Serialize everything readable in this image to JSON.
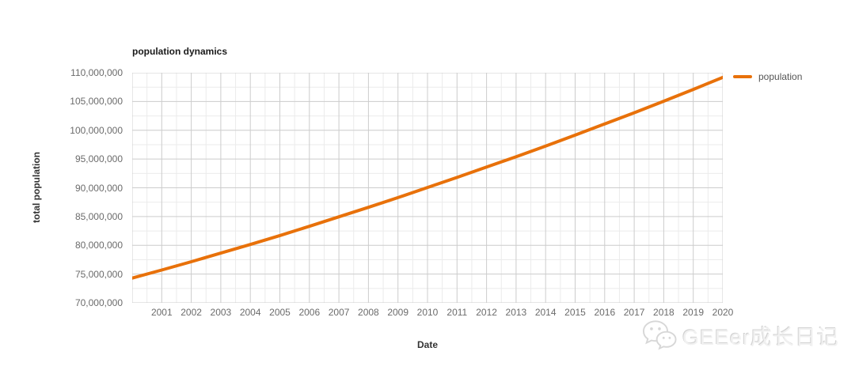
{
  "page": {
    "background": "#ffffff"
  },
  "chart_data": {
    "type": "line",
    "title": "population dynamics",
    "xlabel": "Date",
    "ylabel": "total population",
    "xlim": [
      2000,
      2020
    ],
    "ylim": [
      70000000,
      110000000
    ],
    "xticks": [
      2001,
      2002,
      2003,
      2004,
      2005,
      2006,
      2007,
      2008,
      2009,
      2010,
      2011,
      2012,
      2013,
      2014,
      2015,
      2016,
      2017,
      2018,
      2019,
      2020
    ],
    "ytick_step": 5000000,
    "ytick_labels": [
      "70,000,000",
      "75,000,000",
      "80,000,000",
      "85,000,000",
      "90,000,000",
      "95,000,000",
      "100,000,000",
      "105,000,000",
      "110,000,000"
    ],
    "grid": {
      "major_color": "#cccccc",
      "minor_color": "#ebebeb",
      "minor_ticks": true
    },
    "line_color": "#E8710A",
    "line_width": 4,
    "legend": {
      "position": "right",
      "label": "population"
    },
    "x": [
      2000,
      2001,
      2002,
      2003,
      2004,
      2005,
      2006,
      2007,
      2008,
      2009,
      2010,
      2011,
      2012,
      2013,
      2014,
      2015,
      2016,
      2017,
      2018,
      2019,
      2020
    ],
    "series": [
      {
        "name": "population",
        "values": [
          74300000,
          75700000,
          77150000,
          78650000,
          80150000,
          81700000,
          83300000,
          84950000,
          86600000,
          88300000,
          90050000,
          91800000,
          93600000,
          95400000,
          97250000,
          99150000,
          101100000,
          103050000,
          105050000,
          107100000,
          109200000
        ]
      }
    ]
  },
  "watermark": {
    "icon": "wechat-icon",
    "text": "GEEer成长日记",
    "color": "#e8e8e8"
  }
}
